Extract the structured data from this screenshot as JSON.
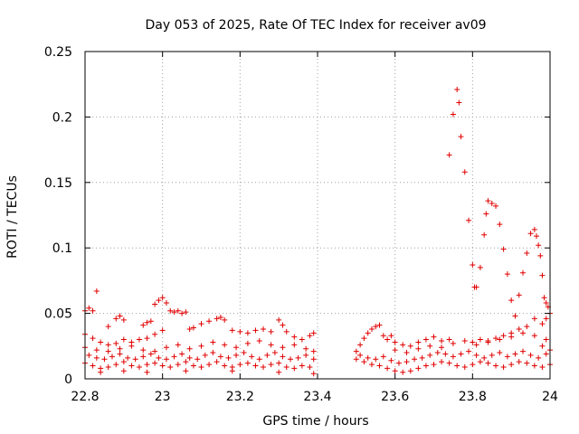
{
  "chart_data": {
    "type": "scatter",
    "title": "Day 053 of 2025, Rate Of TEC Index for receiver av09",
    "xlabel": "GPS time / hours",
    "ylabel": "ROTI / TECUs",
    "xlim": [
      22.8,
      24
    ],
    "ylim": [
      0,
      0.25
    ],
    "xticks": [
      22.8,
      23,
      23.2,
      23.4,
      23.6,
      23.8,
      24
    ],
    "xtick_labels": [
      "22.8",
      "23",
      "23.2",
      "23.4",
      "23.6",
      "23.8",
      "24"
    ],
    "yticks": [
      0,
      0.05,
      0.1,
      0.15,
      0.2,
      0.25
    ],
    "ytick_labels": [
      "0",
      "0.05",
      "0.1",
      "0.15",
      "0.2",
      "0.25"
    ],
    "grid": true,
    "marker": "plus",
    "series_color": "#e00000",
    "data_gap": [
      23.4,
      23.5
    ],
    "series": [
      {
        "name": "ROTI",
        "points": [
          [
            22.8,
            0.052
          ],
          [
            22.81,
            0.054
          ],
          [
            22.82,
            0.052
          ],
          [
            22.83,
            0.067
          ],
          [
            22.8,
            0.034
          ],
          [
            22.82,
            0.031
          ],
          [
            22.84,
            0.028
          ],
          [
            22.86,
            0.026
          ],
          [
            22.88,
            0.027
          ],
          [
            22.9,
            0.03
          ],
          [
            22.92,
            0.028
          ],
          [
            22.94,
            0.03
          ],
          [
            22.96,
            0.031
          ],
          [
            22.98,
            0.034
          ],
          [
            23.0,
            0.037
          ],
          [
            22.86,
            0.04
          ],
          [
            22.88,
            0.046
          ],
          [
            22.89,
            0.048
          ],
          [
            22.9,
            0.045
          ],
          [
            22.95,
            0.041
          ],
          [
            22.96,
            0.043
          ],
          [
            22.97,
            0.044
          ],
          [
            22.98,
            0.057
          ],
          [
            22.99,
            0.06
          ],
          [
            23.0,
            0.062
          ],
          [
            23.01,
            0.058
          ],
          [
            23.02,
            0.052
          ],
          [
            23.03,
            0.051
          ],
          [
            23.04,
            0.052
          ],
          [
            23.05,
            0.05
          ],
          [
            23.06,
            0.051
          ],
          [
            23.07,
            0.038
          ],
          [
            23.08,
            0.039
          ],
          [
            23.1,
            0.042
          ],
          [
            23.12,
            0.044
          ],
          [
            23.14,
            0.046
          ],
          [
            23.15,
            0.047
          ],
          [
            23.16,
            0.045
          ],
          [
            23.18,
            0.037
          ],
          [
            23.2,
            0.036
          ],
          [
            23.22,
            0.035
          ],
          [
            23.24,
            0.037
          ],
          [
            23.26,
            0.038
          ],
          [
            23.28,
            0.036
          ],
          [
            23.3,
            0.045
          ],
          [
            23.31,
            0.041
          ],
          [
            23.32,
            0.036
          ],
          [
            23.34,
            0.032
          ],
          [
            23.36,
            0.03
          ],
          [
            23.38,
            0.033
          ],
          [
            23.39,
            0.035
          ],
          [
            22.8,
            0.012
          ],
          [
            22.82,
            0.01
          ],
          [
            22.84,
            0.008
          ],
          [
            22.86,
            0.009
          ],
          [
            22.88,
            0.011
          ],
          [
            22.9,
            0.013
          ],
          [
            22.92,
            0.01
          ],
          [
            22.94,
            0.009
          ],
          [
            22.96,
            0.011
          ],
          [
            22.98,
            0.012
          ],
          [
            23.0,
            0.01
          ],
          [
            23.02,
            0.009
          ],
          [
            23.04,
            0.011
          ],
          [
            23.06,
            0.013
          ],
          [
            23.08,
            0.01
          ],
          [
            23.1,
            0.009
          ],
          [
            23.12,
            0.011
          ],
          [
            23.14,
            0.013
          ],
          [
            23.16,
            0.01
          ],
          [
            23.18,
            0.009
          ],
          [
            23.2,
            0.011
          ],
          [
            23.22,
            0.012
          ],
          [
            23.24,
            0.01
          ],
          [
            23.26,
            0.009
          ],
          [
            23.28,
            0.011
          ],
          [
            23.3,
            0.012
          ],
          [
            23.32,
            0.009
          ],
          [
            23.34,
            0.008
          ],
          [
            23.36,
            0.01
          ],
          [
            23.38,
            0.009
          ],
          [
            22.81,
            0.018
          ],
          [
            22.83,
            0.016
          ],
          [
            22.85,
            0.015
          ],
          [
            22.87,
            0.017
          ],
          [
            22.89,
            0.019
          ],
          [
            22.91,
            0.016
          ],
          [
            22.93,
            0.015
          ],
          [
            22.95,
            0.017
          ],
          [
            22.97,
            0.019
          ],
          [
            22.99,
            0.016
          ],
          [
            23.01,
            0.015
          ],
          [
            23.03,
            0.017
          ],
          [
            23.05,
            0.019
          ],
          [
            23.07,
            0.016
          ],
          [
            23.09,
            0.015
          ],
          [
            23.11,
            0.018
          ],
          [
            23.13,
            0.02
          ],
          [
            23.15,
            0.017
          ],
          [
            23.17,
            0.016
          ],
          [
            23.19,
            0.018
          ],
          [
            23.21,
            0.02
          ],
          [
            23.23,
            0.017
          ],
          [
            23.25,
            0.015
          ],
          [
            23.27,
            0.018
          ],
          [
            23.29,
            0.02
          ],
          [
            23.31,
            0.017
          ],
          [
            23.33,
            0.015
          ],
          [
            23.35,
            0.016
          ],
          [
            23.37,
            0.018
          ],
          [
            23.39,
            0.015
          ],
          [
            22.8,
            0.024
          ],
          [
            22.83,
            0.022
          ],
          [
            22.86,
            0.021
          ],
          [
            22.89,
            0.023
          ],
          [
            22.92,
            0.025
          ],
          [
            22.95,
            0.022
          ],
          [
            22.98,
            0.021
          ],
          [
            23.01,
            0.024
          ],
          [
            23.04,
            0.026
          ],
          [
            23.07,
            0.023
          ],
          [
            23.1,
            0.025
          ],
          [
            23.13,
            0.028
          ],
          [
            23.16,
            0.026
          ],
          [
            23.19,
            0.024
          ],
          [
            23.22,
            0.027
          ],
          [
            23.25,
            0.029
          ],
          [
            23.28,
            0.026
          ],
          [
            23.31,
            0.024
          ],
          [
            23.34,
            0.026
          ],
          [
            23.37,
            0.023
          ],
          [
            23.39,
            0.021
          ],
          [
            22.84,
            0.005
          ],
          [
            22.9,
            0.006
          ],
          [
            22.96,
            0.005
          ],
          [
            23.06,
            0.006
          ],
          [
            23.18,
            0.006
          ],
          [
            23.3,
            0.005
          ],
          [
            23.39,
            0.004
          ],
          [
            23.5,
            0.021
          ],
          [
            23.51,
            0.026
          ],
          [
            23.52,
            0.031
          ],
          [
            23.53,
            0.035
          ],
          [
            23.54,
            0.038
          ],
          [
            23.55,
            0.04
          ],
          [
            23.56,
            0.041
          ],
          [
            23.57,
            0.033
          ],
          [
            23.58,
            0.03
          ],
          [
            23.59,
            0.033
          ],
          [
            23.6,
            0.028
          ],
          [
            23.62,
            0.026
          ],
          [
            23.64,
            0.025
          ],
          [
            23.66,
            0.028
          ],
          [
            23.68,
            0.03
          ],
          [
            23.7,
            0.032
          ],
          [
            23.72,
            0.029
          ],
          [
            23.74,
            0.03
          ],
          [
            23.5,
            0.015
          ],
          [
            23.52,
            0.013
          ],
          [
            23.54,
            0.011
          ],
          [
            23.56,
            0.01
          ],
          [
            23.58,
            0.008
          ],
          [
            23.6,
            0.006
          ],
          [
            23.62,
            0.005
          ],
          [
            23.64,
            0.006
          ],
          [
            23.66,
            0.008
          ],
          [
            23.68,
            0.01
          ],
          [
            23.7,
            0.011
          ],
          [
            23.72,
            0.013
          ],
          [
            23.74,
            0.012
          ],
          [
            23.76,
            0.01
          ],
          [
            23.78,
            0.009
          ],
          [
            23.8,
            0.011
          ],
          [
            23.82,
            0.013
          ],
          [
            23.84,
            0.012
          ],
          [
            23.86,
            0.01
          ],
          [
            23.88,
            0.009
          ],
          [
            23.9,
            0.011
          ],
          [
            23.92,
            0.013
          ],
          [
            23.94,
            0.012
          ],
          [
            23.96,
            0.01
          ],
          [
            23.98,
            0.009
          ],
          [
            24.0,
            0.011
          ],
          [
            23.51,
            0.018
          ],
          [
            23.53,
            0.016
          ],
          [
            23.55,
            0.015
          ],
          [
            23.57,
            0.017
          ],
          [
            23.59,
            0.014
          ],
          [
            23.61,
            0.012
          ],
          [
            23.63,
            0.013
          ],
          [
            23.65,
            0.015
          ],
          [
            23.67,
            0.016
          ],
          [
            23.69,
            0.018
          ],
          [
            23.71,
            0.02
          ],
          [
            23.73,
            0.019
          ],
          [
            23.75,
            0.017
          ],
          [
            23.77,
            0.019
          ],
          [
            23.79,
            0.021
          ],
          [
            23.81,
            0.018
          ],
          [
            23.83,
            0.016
          ],
          [
            23.85,
            0.018
          ],
          [
            23.87,
            0.02
          ],
          [
            23.89,
            0.017
          ],
          [
            23.91,
            0.019
          ],
          [
            23.93,
            0.021
          ],
          [
            23.95,
            0.018
          ],
          [
            23.97,
            0.016
          ],
          [
            23.99,
            0.019
          ],
          [
            23.6,
            0.022
          ],
          [
            23.63,
            0.02
          ],
          [
            23.66,
            0.023
          ],
          [
            23.69,
            0.025
          ],
          [
            23.72,
            0.024
          ],
          [
            23.75,
            0.027
          ],
          [
            23.78,
            0.029
          ],
          [
            23.81,
            0.026
          ],
          [
            23.84,
            0.028
          ],
          [
            23.87,
            0.03
          ],
          [
            23.9,
            0.032
          ],
          [
            23.93,
            0.035
          ],
          [
            23.96,
            0.033
          ],
          [
            23.99,
            0.03
          ],
          [
            23.74,
            0.171
          ],
          [
            23.75,
            0.202
          ],
          [
            23.76,
            0.221
          ],
          [
            23.765,
            0.211
          ],
          [
            23.77,
            0.185
          ],
          [
            23.78,
            0.158
          ],
          [
            23.79,
            0.121
          ],
          [
            23.8,
            0.087
          ],
          [
            23.805,
            0.07
          ],
          [
            23.81,
            0.07
          ],
          [
            23.82,
            0.085
          ],
          [
            23.83,
            0.11
          ],
          [
            23.835,
            0.126
          ],
          [
            23.84,
            0.136
          ],
          [
            23.85,
            0.134
          ],
          [
            23.86,
            0.132
          ],
          [
            23.87,
            0.118
          ],
          [
            23.88,
            0.099
          ],
          [
            23.89,
            0.08
          ],
          [
            23.9,
            0.06
          ],
          [
            23.91,
            0.048
          ],
          [
            23.92,
            0.064
          ],
          [
            23.93,
            0.081
          ],
          [
            23.94,
            0.096
          ],
          [
            23.95,
            0.111
          ],
          [
            23.96,
            0.114
          ],
          [
            23.965,
            0.109
          ],
          [
            23.97,
            0.102
          ],
          [
            23.975,
            0.094
          ],
          [
            23.98,
            0.079
          ],
          [
            23.985,
            0.062
          ],
          [
            23.99,
            0.058
          ],
          [
            23.995,
            0.055
          ],
          [
            24.0,
            0.05
          ],
          [
            23.99,
            0.046
          ],
          [
            23.98,
            0.042
          ],
          [
            23.96,
            0.046
          ],
          [
            23.94,
            0.04
          ],
          [
            23.92,
            0.038
          ],
          [
            23.9,
            0.035
          ],
          [
            23.88,
            0.033
          ],
          [
            23.86,
            0.031
          ],
          [
            23.84,
            0.029
          ],
          [
            23.82,
            0.03
          ],
          [
            23.8,
            0.028
          ],
          [
            23.98,
            0.025
          ],
          [
            24.0,
            0.022
          ]
        ]
      }
    ]
  }
}
